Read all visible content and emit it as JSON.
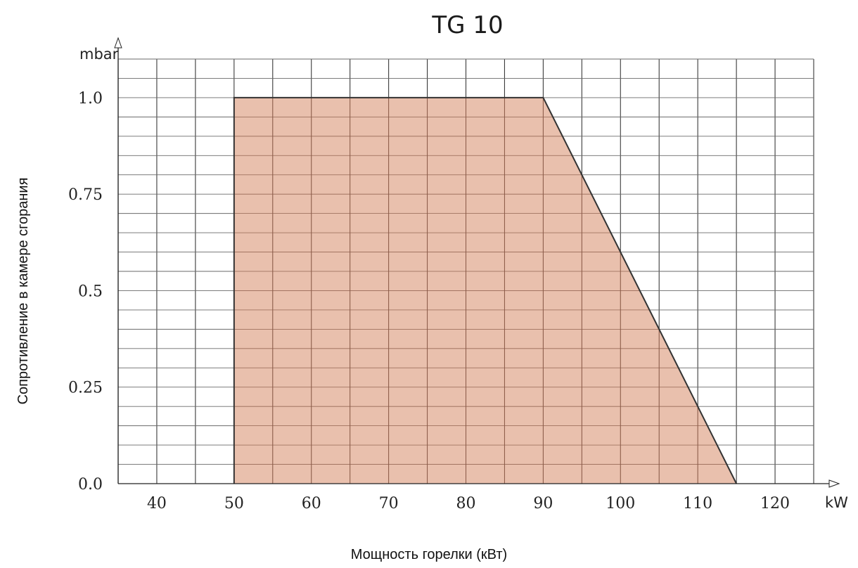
{
  "chart_data": {
    "type": "area",
    "title": "TG 10",
    "xlabel": "Мощность горелки (кВт)",
    "ylabel": "Сопротивление в камере сгорания",
    "x_unit": "kW",
    "y_unit": "mbar",
    "xlim": [
      35,
      125
    ],
    "ylim": [
      0,
      1.1
    ],
    "x_ticks": [
      {
        "value": 40,
        "label": "40"
      },
      {
        "value": 50,
        "label": "50"
      },
      {
        "value": 60,
        "label": "60"
      },
      {
        "value": 70,
        "label": "70"
      },
      {
        "value": 80,
        "label": "80"
      },
      {
        "value": 90,
        "label": "90"
      },
      {
        "value": 100,
        "label": "100"
      },
      {
        "value": 110,
        "label": "110"
      },
      {
        "value": 120,
        "label": "120"
      }
    ],
    "y_ticks": [
      {
        "value": 0,
        "label": "0.0"
      },
      {
        "value": 0.25,
        "label": "0.25"
      },
      {
        "value": 0.5,
        "label": "0.5"
      },
      {
        "value": 0.75,
        "label": "0.75"
      },
      {
        "value": 1.0,
        "label": "1.0"
      }
    ],
    "x_grid_step": 5,
    "y_grid_step": 0.05,
    "grid": true,
    "series": [
      {
        "points": [
          {
            "x": 50,
            "y": 0
          },
          {
            "x": 50,
            "y": 1.0
          },
          {
            "x": 90,
            "y": 1.0
          },
          {
            "x": 115,
            "y": 0
          }
        ],
        "fill": "#e6b7a2",
        "stroke": "#333333"
      }
    ]
  }
}
